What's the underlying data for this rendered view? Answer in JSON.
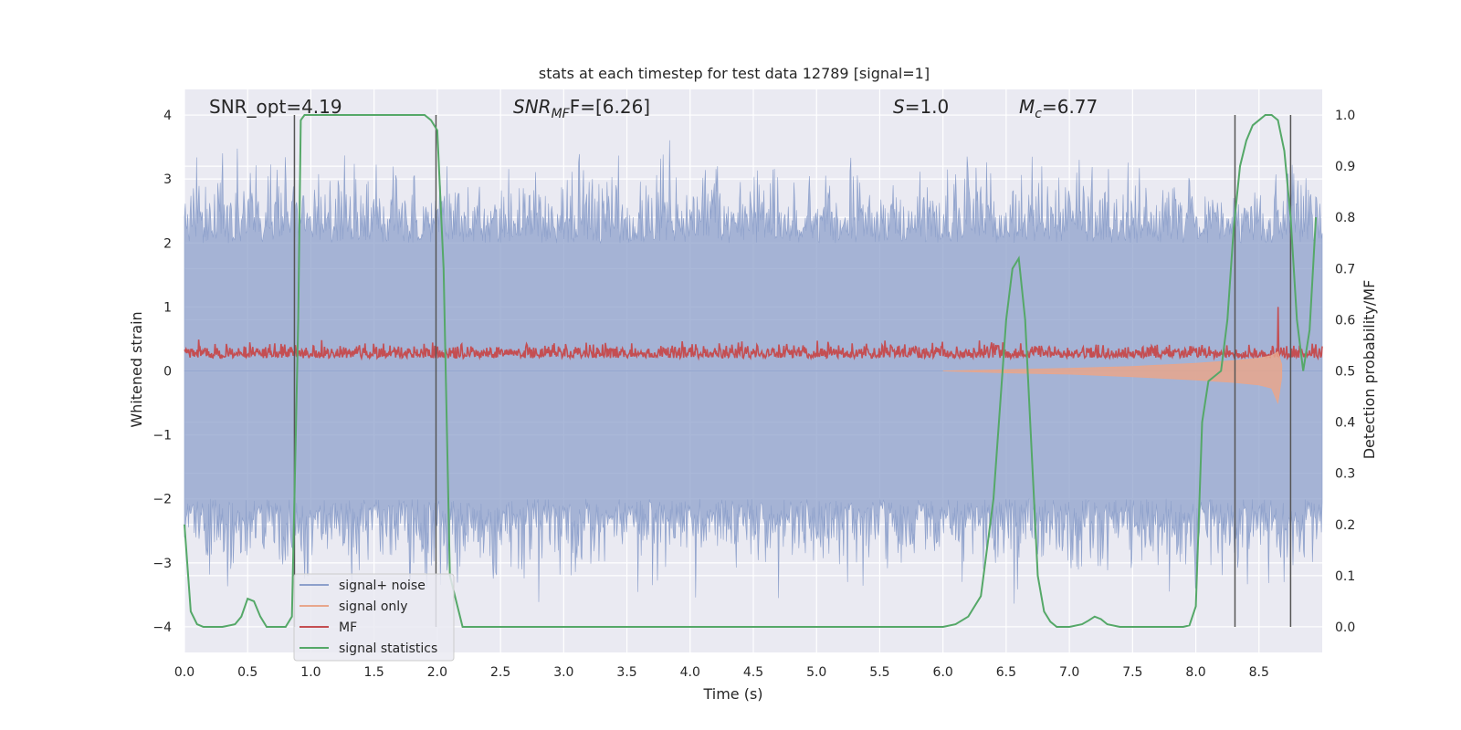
{
  "chart_data": {
    "type": "line",
    "title": "stats at each timestep for test data 12789 [signal=1]",
    "xlabel": "Time (s)",
    "ylabel_left": "Whitened strain",
    "ylabel_right": "Detection probability/MF",
    "xlim": [
      0.0,
      9.0
    ],
    "ylim_left": [
      -4.4,
      4.4
    ],
    "ylim_right": [
      -0.05,
      1.05
    ],
    "xticks": [
      0.0,
      0.5,
      1.0,
      1.5,
      2.0,
      2.5,
      3.0,
      3.5,
      4.0,
      4.5,
      5.0,
      5.5,
      6.0,
      6.5,
      7.0,
      7.5,
      8.0,
      8.5
    ],
    "yticks_left": [
      -4,
      -3,
      -2,
      -1,
      0,
      1,
      2,
      3,
      4
    ],
    "yticks_right": [
      0.0,
      0.1,
      0.2,
      0.3,
      0.4,
      0.5,
      0.6,
      0.7,
      0.8,
      0.9,
      1.0
    ],
    "grid": true,
    "background": "#eaeaf2",
    "annotations": {
      "snr_opt": "SNR_opt=4.19",
      "snr_mf_main": "SNR",
      "snr_mf_sub": "MF",
      "snr_mf_tail": "F=[6.26]",
      "s_main": "S",
      "s_tail": "=1.0",
      "mc_main": "M",
      "mc_sub": "c",
      "mc_tail": "=6.77"
    },
    "vertical_lines_s": [
      0.87,
      1.99,
      8.31,
      8.75
    ],
    "legend": {
      "position": "lower-left",
      "entries": [
        {
          "label": "signal+ noise",
          "color": "#8da0cb"
        },
        {
          "label": "signal only",
          "color": "#e8a68c"
        },
        {
          "label": "MF",
          "color": "#c44e52"
        },
        {
          "label": "signal statistics",
          "color": "#55a868"
        }
      ]
    },
    "series": [
      {
        "name": "signal+ noise",
        "axis": "left",
        "color": "#8da0cb",
        "description_values": {
          "upper_envelope_typical": 2.0,
          "lower_envelope_typical": -2.0,
          "max": 3.9,
          "min": -3.9
        }
      },
      {
        "name": "signal only",
        "axis": "left",
        "color": "#e8a68c",
        "x": [
          6.0,
          6.5,
          7.0,
          7.5,
          8.0,
          8.3,
          8.5,
          8.6,
          8.65,
          8.68
        ],
        "upper": [
          0.0,
          0.02,
          0.04,
          0.07,
          0.12,
          0.16,
          0.2,
          0.24,
          0.3,
          0.1
        ],
        "lower": [
          0.0,
          -0.03,
          -0.05,
          -0.09,
          -0.14,
          -0.18,
          -0.22,
          -0.27,
          -0.5,
          -0.1
        ]
      },
      {
        "name": "MF",
        "axis": "left",
        "color": "#c44e52",
        "description_values": {
          "baseline": 0.2,
          "typical_max": 0.5,
          "max": 1.0,
          "max_x": 8.65
        }
      },
      {
        "name": "signal statistics",
        "axis": "right",
        "color": "#55a868",
        "x": [
          0.0,
          0.05,
          0.1,
          0.15,
          0.2,
          0.3,
          0.4,
          0.45,
          0.5,
          0.55,
          0.6,
          0.65,
          0.8,
          0.85,
          0.9,
          0.92,
          0.95,
          1.0,
          1.5,
          1.9,
          1.95,
          2.0,
          2.05,
          2.1,
          2.2,
          3.0,
          4.0,
          5.0,
          5.8,
          6.0,
          6.1,
          6.2,
          6.3,
          6.4,
          6.5,
          6.55,
          6.6,
          6.65,
          6.7,
          6.75,
          6.8,
          6.85,
          6.9,
          7.0,
          7.1,
          7.15,
          7.2,
          7.25,
          7.3,
          7.4,
          7.5,
          7.8,
          7.9,
          7.95,
          8.0,
          8.05,
          8.1,
          8.15,
          8.2,
          8.25,
          8.3,
          8.35,
          8.4,
          8.45,
          8.5,
          8.55,
          8.6,
          8.65,
          8.7,
          8.75,
          8.8,
          8.85,
          8.9,
          8.95
        ],
        "y": [
          0.2,
          0.03,
          0.005,
          0.0,
          0.0,
          0.0,
          0.005,
          0.02,
          0.055,
          0.05,
          0.02,
          0.0,
          0.0,
          0.02,
          0.6,
          0.99,
          1.0,
          1.0,
          1.0,
          1.0,
          0.99,
          0.97,
          0.7,
          0.1,
          0.0,
          0.0,
          0.0,
          0.0,
          0.0,
          0.0,
          0.005,
          0.02,
          0.06,
          0.25,
          0.6,
          0.7,
          0.72,
          0.6,
          0.35,
          0.1,
          0.03,
          0.01,
          0.0,
          0.0,
          0.005,
          0.012,
          0.02,
          0.015,
          0.005,
          0.0,
          0.0,
          0.0,
          0.0,
          0.003,
          0.04,
          0.4,
          0.48,
          0.49,
          0.5,
          0.6,
          0.78,
          0.9,
          0.95,
          0.98,
          0.99,
          1.0,
          1.0,
          0.99,
          0.93,
          0.8,
          0.6,
          0.5,
          0.58,
          0.8
        ]
      }
    ]
  }
}
